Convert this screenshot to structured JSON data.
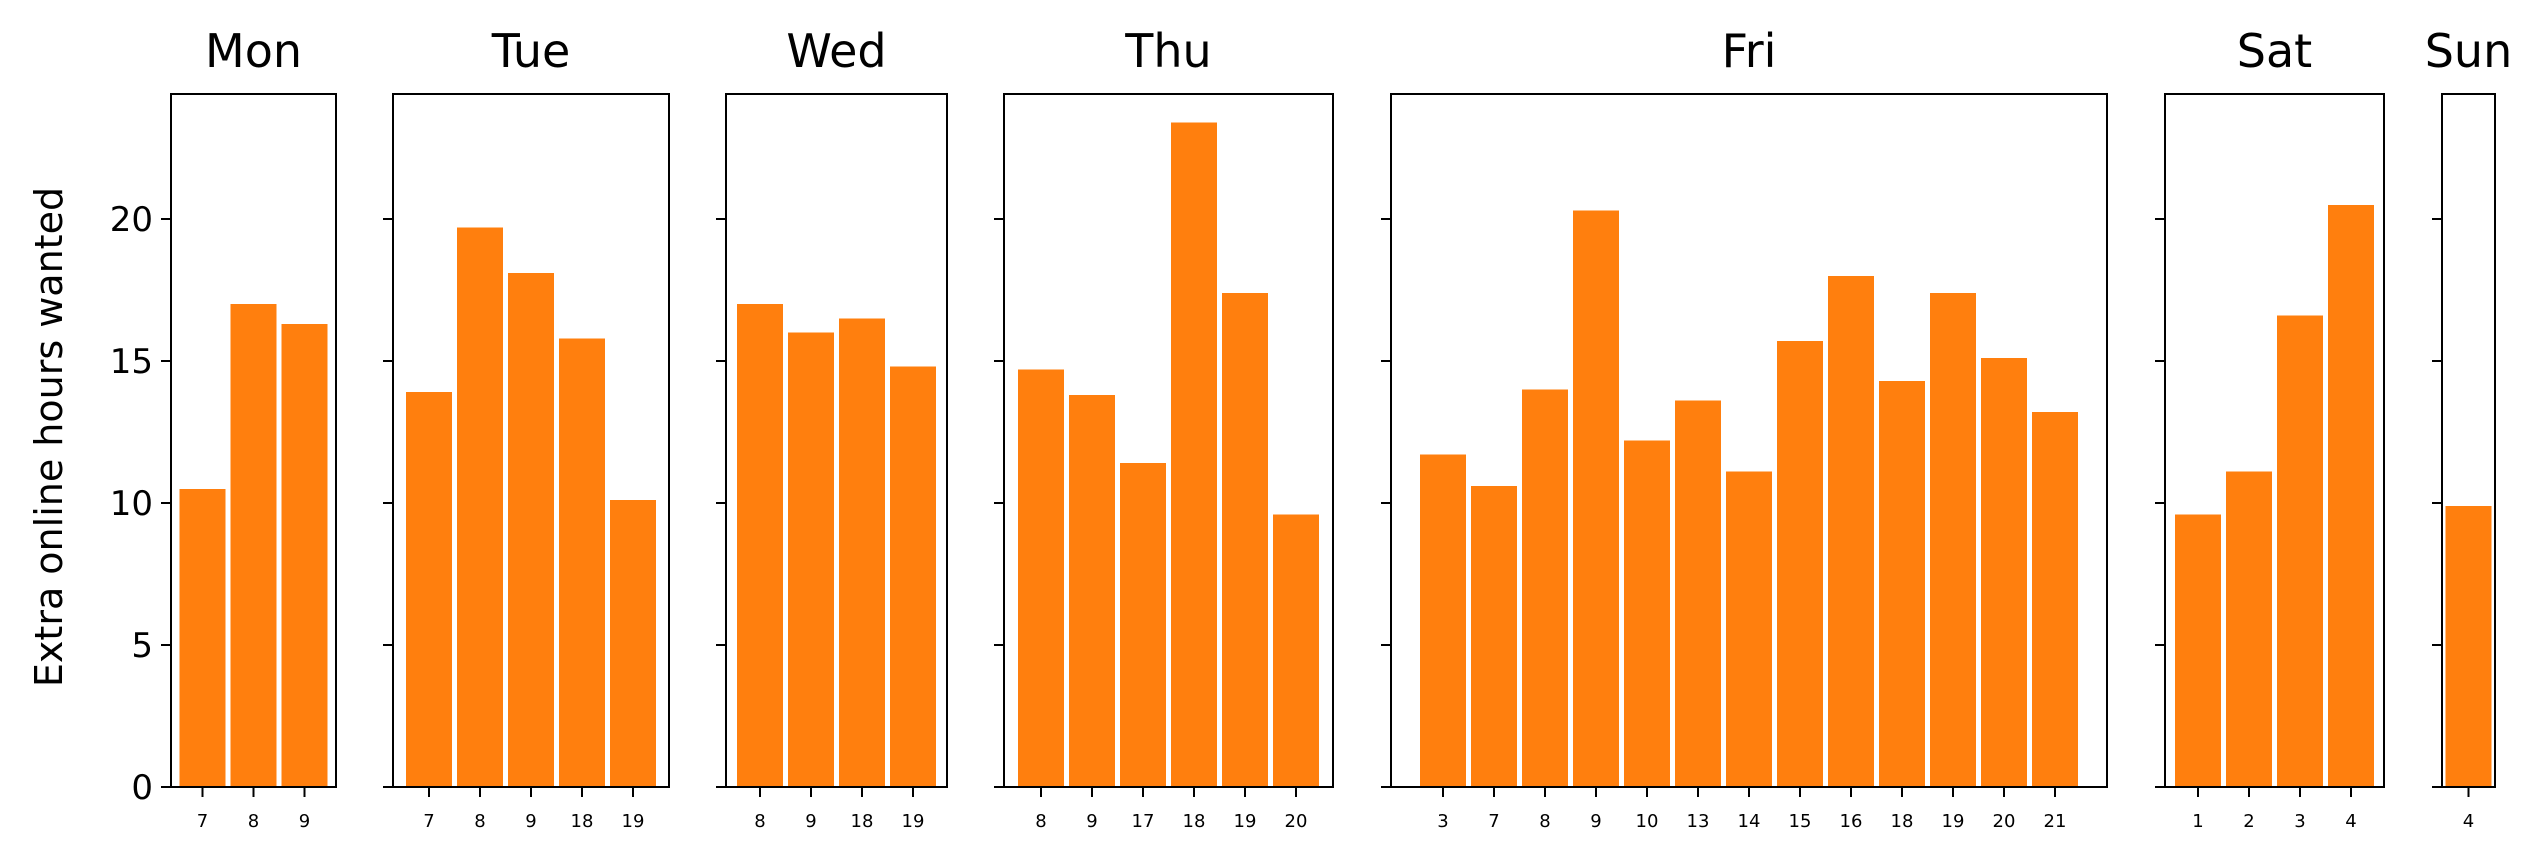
{
  "chart_data": {
    "type": "bar",
    "ylabel": "Extra online hours wanted",
    "ylim": [
      0,
      24.4
    ],
    "yticks": [
      0,
      5,
      10,
      15,
      20
    ],
    "color": "#ff7f0e",
    "grid": false,
    "panels": [
      {
        "title": "Mon",
        "categories": [
          "7",
          "8",
          "9"
        ],
        "values": [
          10.5,
          17.0,
          16.3
        ]
      },
      {
        "title": "Tue",
        "categories": [
          "7",
          "8",
          "9",
          "18",
          "19"
        ],
        "values": [
          13.9,
          19.7,
          18.1,
          15.8,
          10.1
        ]
      },
      {
        "title": "Wed",
        "categories": [
          "8",
          "9",
          "18",
          "19"
        ],
        "values": [
          17.0,
          16.0,
          16.5,
          14.8
        ]
      },
      {
        "title": "Thu",
        "categories": [
          "8",
          "9",
          "17",
          "18",
          "19",
          "20"
        ],
        "values": [
          14.7,
          13.8,
          11.4,
          23.4,
          17.4,
          9.6
        ]
      },
      {
        "title": "Fri",
        "categories": [
          "3",
          "7",
          "8",
          "9",
          "10",
          "13",
          "14",
          "15",
          "16",
          "18",
          "19",
          "20",
          "21"
        ],
        "values": [
          11.7,
          10.6,
          14.0,
          20.3,
          12.2,
          13.6,
          11.1,
          15.7,
          18.0,
          14.3,
          17.4,
          15.1,
          13.2
        ]
      },
      {
        "title": "Sat",
        "categories": [
          "1",
          "2",
          "3",
          "4"
        ],
        "values": [
          9.6,
          11.1,
          16.6,
          20.5
        ]
      },
      {
        "title": "Sun",
        "categories": [
          "4"
        ],
        "values": [
          9.9
        ]
      }
    ]
  }
}
